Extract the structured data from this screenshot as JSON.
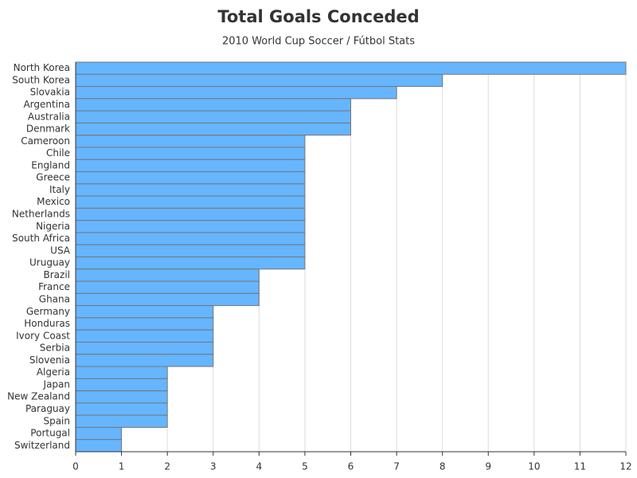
{
  "chart_data": {
    "type": "bar",
    "orientation": "horizontal",
    "title": "Total Goals Conceded",
    "subtitle": "2010 World Cup Soccer / Fútbol Stats",
    "categories": [
      "North Korea",
      "South Korea",
      "Slovakia",
      "Argentina",
      "Australia",
      "Denmark",
      "Cameroon",
      "Chile",
      "England",
      "Greece",
      "Italy",
      "Mexico",
      "Netherlands",
      "Nigeria",
      "South Africa",
      "USA",
      "Uruguay",
      "Brazil",
      "France",
      "Ghana",
      "Germany",
      "Honduras",
      "Ivory Coast",
      "Serbia",
      "Slovenia",
      "Algeria",
      "Japan",
      "New Zealand",
      "Paraguay",
      "Spain",
      "Portugal",
      "Switzerland"
    ],
    "values": [
      12,
      8,
      7,
      6,
      6,
      6,
      5,
      5,
      5,
      5,
      5,
      5,
      5,
      5,
      5,
      5,
      5,
      4,
      4,
      4,
      3,
      3,
      3,
      3,
      3,
      2,
      2,
      2,
      2,
      2,
      1,
      1
    ],
    "color": "#66b5ff",
    "xlim": [
      0,
      12
    ],
    "xticks": [
      0,
      1,
      2,
      3,
      4,
      5,
      6,
      7,
      8,
      9,
      10,
      11,
      12
    ],
    "grid": true
  }
}
